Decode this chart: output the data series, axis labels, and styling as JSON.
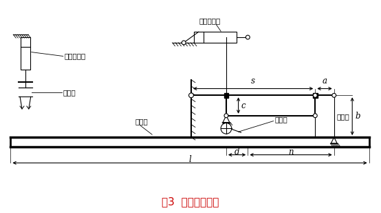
{
  "title": "图3  取袋机构原理",
  "title_color": "#cc0000",
  "bg_color": "#ffffff",
  "fig_width": 5.54,
  "fig_height": 3.09,
  "dpi": 100,
  "labels": {
    "front_cylinder": "前吸袋气缸",
    "rear_cylinder": "后吸袋气缸",
    "rear_sucker": "后吸盘",
    "valve_bag": "阀口袋",
    "front_sucker": "前吸盘",
    "press_rod": "压袋杆",
    "dim_s": "s",
    "dim_a": "a",
    "dim_b": "b",
    "dim_c": "c",
    "dim_d": "d",
    "dim_n": "n",
    "dim_l": "l"
  }
}
